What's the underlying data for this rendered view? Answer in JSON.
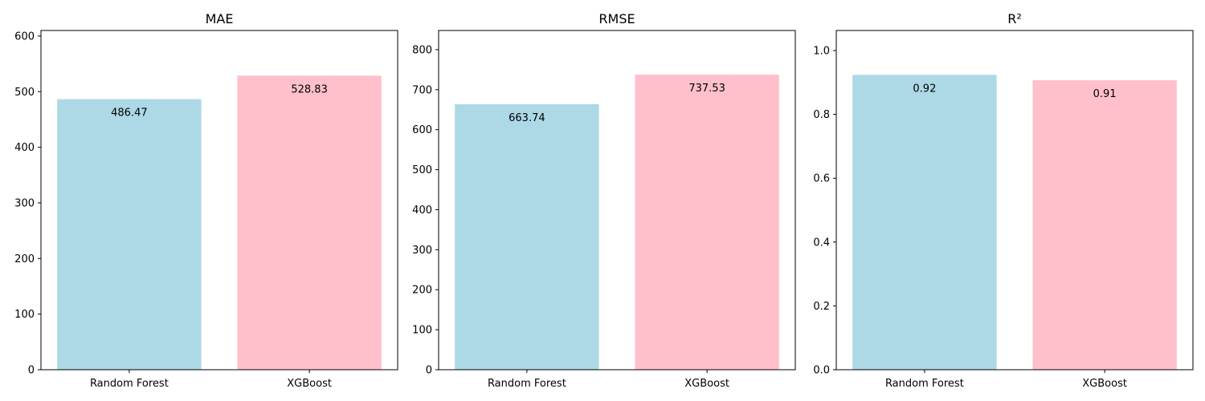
{
  "chart_data": [
    {
      "type": "bar",
      "title": "MAE",
      "categories": [
        "Random Forest",
        "XGBoost"
      ],
      "values": [
        486.47,
        528.83
      ],
      "value_labels": [
        "486.47",
        "528.83"
      ],
      "colors": [
        "#add8e6",
        "#ffc0cb"
      ],
      "ylim": [
        0,
        610
      ],
      "yticks": [
        0,
        100,
        200,
        300,
        400,
        500,
        600
      ],
      "ytick_labels": [
        "0",
        "100",
        "200",
        "300",
        "400",
        "500",
        "600"
      ],
      "xlabel": "",
      "ylabel": "",
      "grid": false
    },
    {
      "type": "bar",
      "title": "RMSE",
      "categories": [
        "Random Forest",
        "XGBoost"
      ],
      "values": [
        663.74,
        737.53
      ],
      "value_labels": [
        "663.74",
        "737.53"
      ],
      "colors": [
        "#add8e6",
        "#ffc0cb"
      ],
      "ylim": [
        0,
        848
      ],
      "yticks": [
        0,
        100,
        200,
        300,
        400,
        500,
        600,
        700,
        800
      ],
      "ytick_labels": [
        "0",
        "100",
        "200",
        "300",
        "400",
        "500",
        "600",
        "700",
        "800"
      ],
      "xlabel": "",
      "ylabel": "",
      "grid": false
    },
    {
      "type": "bar",
      "title": "R²",
      "categories": [
        "Random Forest",
        "XGBoost"
      ],
      "values": [
        0.924,
        0.907
      ],
      "value_labels": [
        "0.92",
        "0.91"
      ],
      "colors": [
        "#add8e6",
        "#ffc0cb"
      ],
      "ylim": [
        0,
        1.063
      ],
      "yticks": [
        0,
        0.2,
        0.4,
        0.6,
        0.8,
        1.0
      ],
      "ytick_labels": [
        "0.0",
        "0.2",
        "0.4",
        "0.6",
        "0.8",
        "1.0"
      ],
      "xlabel": "",
      "ylabel": "",
      "grid": false
    }
  ]
}
